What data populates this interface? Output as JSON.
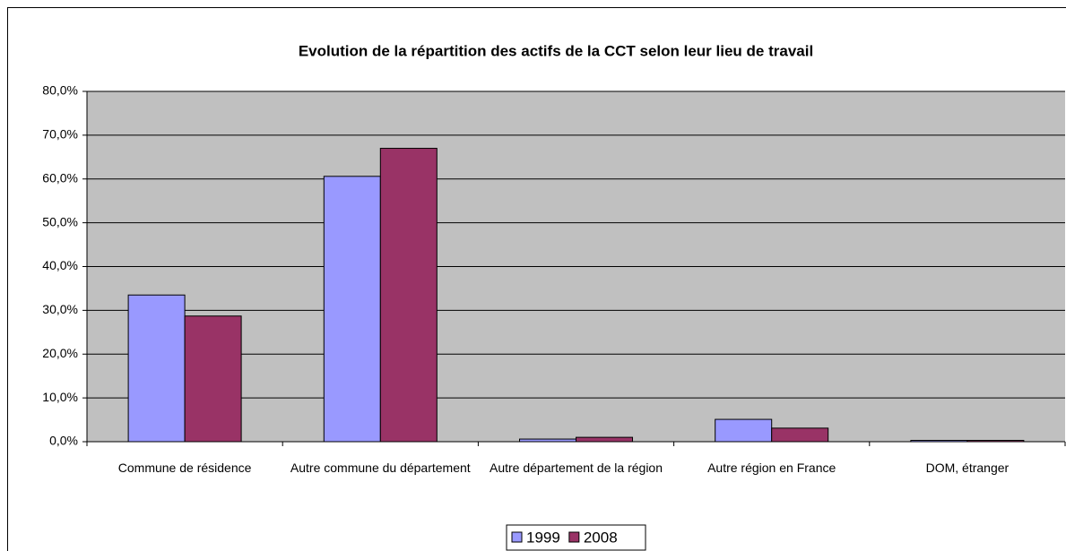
{
  "chart_data": {
    "type": "bar",
    "title": "Evolution de la répartition des actifs de la CCT selon leur lieu de travail",
    "categories": [
      "Commune de résidence",
      "Autre commune du département",
      "Autre département de la région",
      "Autre région en France",
      "DOM, étranger"
    ],
    "series": [
      {
        "name": "1999",
        "color": "#9999ff",
        "values": [
          33.5,
          60.6,
          0.6,
          5.1,
          0.3
        ]
      },
      {
        "name": "2008",
        "color": "#993366",
        "values": [
          28.7,
          67.0,
          1.0,
          3.1,
          0.3
        ]
      }
    ],
    "ylim": [
      0,
      80
    ],
    "yticks": [
      {
        "value": 0,
        "label": "0,0%"
      },
      {
        "value": 10,
        "label": "10,0%"
      },
      {
        "value": 20,
        "label": "20,0%"
      },
      {
        "value": 30,
        "label": "30,0%"
      },
      {
        "value": 40,
        "label": "40,0%"
      },
      {
        "value": 50,
        "label": "50,0%"
      },
      {
        "value": 60,
        "label": "60,0%"
      },
      {
        "value": 70,
        "label": "70,0%"
      },
      {
        "value": 80,
        "label": "80,0%"
      }
    ],
    "grid": true,
    "legend": "bottom"
  }
}
